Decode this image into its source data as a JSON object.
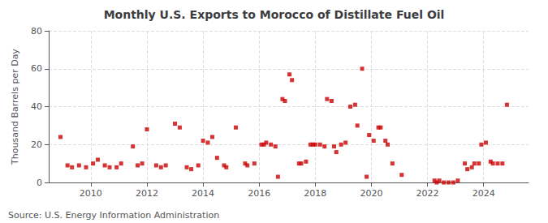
{
  "chart_data": {
    "type": "scatter",
    "title": "Monthly U.S. Exports to Morocco of Distillate Fuel Oil",
    "ylabel": "Thousand Barrels per Day",
    "annotations": [
      "Source: U.S. Energy Information Administration"
    ],
    "color": "#cc0000",
    "marker": "square",
    "grid": true,
    "xlim": [
      2008.5,
      2025.6
    ],
    "xticks": [
      2010,
      2012,
      2014,
      2016,
      2018,
      2020,
      2022,
      2024
    ],
    "ylim": [
      0,
      80
    ],
    "yticks": [
      0,
      20,
      40,
      60,
      80
    ],
    "x": [
      2008.92,
      2009.17,
      2009.33,
      2009.58,
      2009.83,
      2010.08,
      2010.25,
      2010.5,
      2010.67,
      2010.92,
      2011.08,
      2011.5,
      2011.67,
      2011.83,
      2012.0,
      2012.33,
      2012.5,
      2012.67,
      2013.0,
      2013.17,
      2013.42,
      2013.58,
      2013.83,
      2014.0,
      2014.17,
      2014.33,
      2014.5,
      2014.75,
      2014.83,
      2015.17,
      2015.5,
      2015.58,
      2015.83,
      2016.08,
      2016.17,
      2016.25,
      2016.42,
      2016.58,
      2016.67,
      2016.83,
      2016.92,
      2017.08,
      2017.17,
      2017.42,
      2017.5,
      2017.67,
      2017.83,
      2017.92,
      2018.0,
      2018.17,
      2018.33,
      2018.42,
      2018.58,
      2018.67,
      2018.75,
      2018.92,
      2019.08,
      2019.25,
      2019.42,
      2019.5,
      2019.67,
      2019.83,
      2019.92,
      2020.08,
      2020.25,
      2020.33,
      2020.5,
      2020.58,
      2020.75,
      2021.08,
      2022.25,
      2022.33,
      2022.42,
      2022.58,
      2022.75,
      2022.92,
      2023.08,
      2023.33,
      2023.42,
      2023.58,
      2023.67,
      2023.83,
      2023.92,
      2024.08,
      2024.25,
      2024.33,
      2024.5,
      2024.67,
      2024.83
    ],
    "values": [
      24,
      9,
      8,
      9,
      8,
      10,
      12,
      9,
      8,
      8,
      10,
      19,
      9,
      10,
      28,
      9,
      8,
      9,
      31,
      29,
      8,
      7,
      9,
      22,
      21,
      24,
      13,
      9,
      8,
      29,
      10,
      9,
      10,
      20,
      20,
      21,
      20,
      19,
      3,
      44,
      43,
      57,
      54,
      10,
      10,
      11,
      20,
      20,
      20,
      20,
      19,
      44,
      43,
      19,
      16,
      20,
      21,
      40,
      41,
      30,
      60,
      3,
      25,
      22,
      29,
      29,
      22,
      20,
      10,
      4,
      1,
      0,
      1,
      0,
      0,
      0,
      1,
      10,
      7,
      8,
      10,
      10,
      20,
      21,
      11,
      10,
      10,
      10,
      41
    ]
  }
}
